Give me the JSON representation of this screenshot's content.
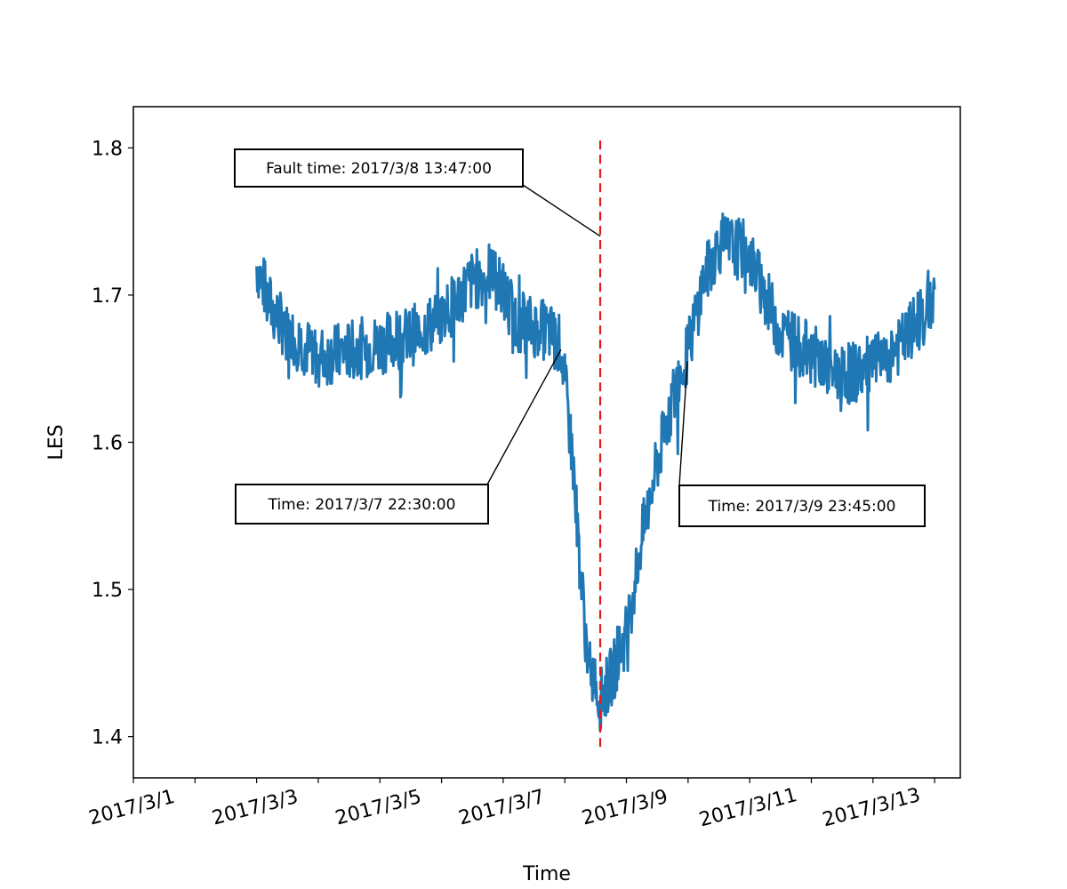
{
  "chart_data": {
    "type": "line",
    "title": "",
    "xlabel": "Time",
    "ylabel": "LES",
    "x_tick_labels": [
      "2017/3/1",
      "2017/3/3",
      "2017/3/5",
      "2017/3/7",
      "2017/3/9",
      "2017/3/11",
      "2017/3/13"
    ],
    "x_tick_dates": [
      "2017-03-01",
      "2017-03-03",
      "2017-03-05",
      "2017-03-07",
      "2017-03-09",
      "2017-03-11",
      "2017-03-13"
    ],
    "x_minor_tick_dates": [
      "2017-03-02",
      "2017-03-04",
      "2017-03-06",
      "2017-03-08",
      "2017-03-10",
      "2017-03-12",
      "2017-03-14"
    ],
    "xlim": [
      "2017-03-01",
      "2017-03-14 10:00"
    ],
    "y_ticks": [
      1.4,
      1.5,
      1.6,
      1.7,
      1.8
    ],
    "y_tick_labels": [
      "1.4",
      "1.5",
      "1.6",
      "1.7",
      "1.8"
    ],
    "ylim": [
      1.372,
      1.828
    ],
    "grid": false,
    "series": [
      {
        "color": "#1f77b4",
        "points": [
          [
            "2017-03-03 00:00",
            1.72
          ],
          [
            "2017-03-03 06:00",
            1.69
          ],
          [
            "2017-03-03 12:00",
            1.675
          ],
          [
            "2017-03-04 00:00",
            1.658
          ],
          [
            "2017-03-04 12:00",
            1.662
          ],
          [
            "2017-03-05 00:00",
            1.667
          ],
          [
            "2017-03-05 12:00",
            1.672
          ],
          [
            "2017-03-06 00:00",
            1.685
          ],
          [
            "2017-03-06 12:00",
            1.71
          ],
          [
            "2017-03-06 20:00",
            1.715
          ],
          [
            "2017-03-07 06:00",
            1.682
          ],
          [
            "2017-03-07 18:00",
            1.675
          ],
          [
            "2017-03-07 22:30",
            1.665
          ],
          [
            "2017-03-08 03:00",
            1.59
          ],
          [
            "2017-03-08 06:00",
            1.515
          ],
          [
            "2017-03-08 09:00",
            1.45
          ],
          [
            "2017-03-08 13:47",
            1.425
          ],
          [
            "2017-03-08 18:00",
            1.44
          ],
          [
            "2017-03-09 00:00",
            1.47
          ],
          [
            "2017-03-09 06:00",
            1.535
          ],
          [
            "2017-03-09 12:00",
            1.585
          ],
          [
            "2017-03-09 18:00",
            1.63
          ],
          [
            "2017-03-09 23:45",
            1.66
          ],
          [
            "2017-03-10 06:00",
            1.71
          ],
          [
            "2017-03-10 12:00",
            1.735
          ],
          [
            "2017-03-10 23:00",
            1.73
          ],
          [
            "2017-03-11 06:00",
            1.7
          ],
          [
            "2017-03-11 12:00",
            1.675
          ],
          [
            "2017-03-12 00:00",
            1.66
          ],
          [
            "2017-03-12 12:00",
            1.645
          ],
          [
            "2017-03-13 00:00",
            1.652
          ],
          [
            "2017-03-13 12:00",
            1.668
          ],
          [
            "2017-03-14 00:00",
            1.7
          ]
        ]
      }
    ],
    "vertical_line": {
      "date": "2017-03-08 13:47",
      "color": "#e41a1c",
      "style": "dashed"
    },
    "annotations": [
      {
        "text": "Fault time: 2017/3/8 13:47:00",
        "target_date": "2017-03-08 13:47",
        "target_value": 1.74
      },
      {
        "text": "Time: 2017/3/7 22:30:00",
        "target_date": "2017-03-07 22:30",
        "target_value": 1.663
      },
      {
        "text": "Time: 2017/3/9 23:45:00",
        "target_date": "2017-03-09 23:45",
        "target_value": 1.655
      }
    ]
  }
}
